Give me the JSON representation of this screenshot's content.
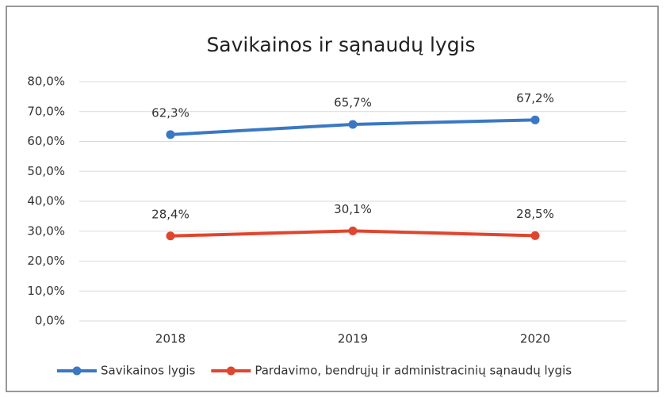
{
  "chart_data": {
    "type": "line",
    "title": "Savikainos ir sąnaudų lygis",
    "categories": [
      "2018",
      "2019",
      "2020"
    ],
    "series": [
      {
        "name": "Savikainos lygis",
        "color": "#3a78c3",
        "values": [
          62.3,
          65.7,
          67.2
        ],
        "value_labels": [
          "62,3%",
          "65,7%",
          "67,2%"
        ]
      },
      {
        "name": "Pardavimo, bendrųjų ir administracinių sąnaudų lygis",
        "color": "#e0452e",
        "values": [
          28.4,
          30.1,
          28.5
        ],
        "value_labels": [
          "28,4%",
          "30,1%",
          "28,5%"
        ]
      }
    ],
    "ylim": [
      0,
      80
    ],
    "yticks": [
      {
        "value": 0,
        "label": "0,0%"
      },
      {
        "value": 10,
        "label": "10,0%"
      },
      {
        "value": 20,
        "label": "20,0%"
      },
      {
        "value": 30,
        "label": "30,0%"
      },
      {
        "value": 40,
        "label": "40,0%"
      },
      {
        "value": 50,
        "label": "50,0%"
      },
      {
        "value": 60,
        "label": "60,0%"
      },
      {
        "value": 70,
        "label": "70,0%"
      },
      {
        "value": 80,
        "label": "80,0%"
      }
    ],
    "grid": true,
    "legend": "bottom"
  }
}
